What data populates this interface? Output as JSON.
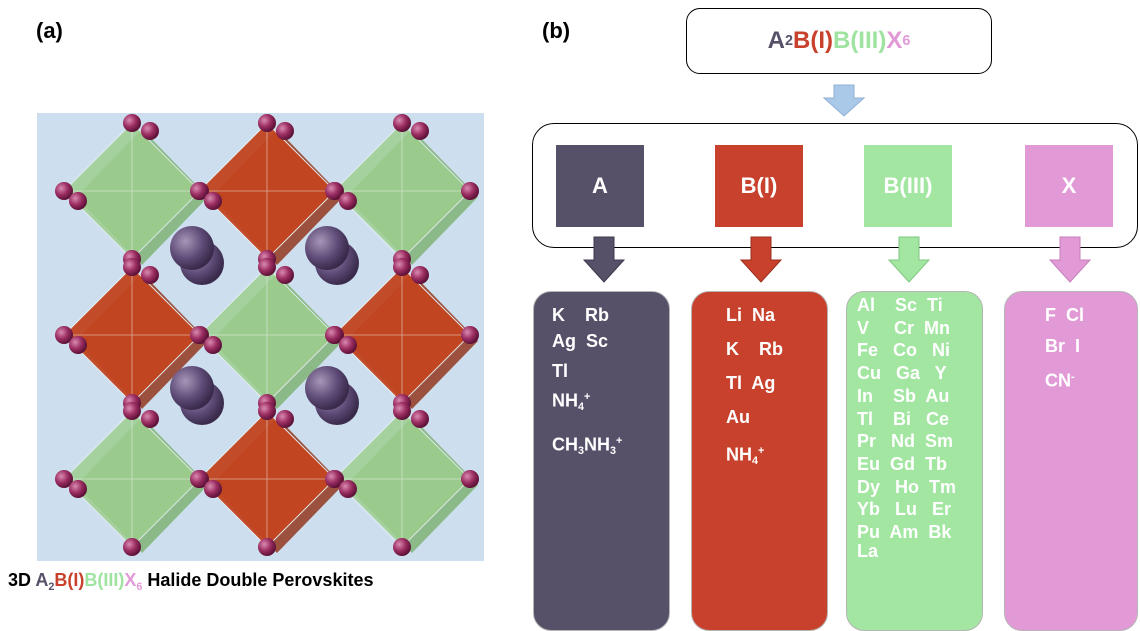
{
  "panel_a": {
    "label": "(a)",
    "caption": {
      "prefix": "3D ",
      "a": "A",
      "a_sub": "2",
      "b1": "B(I)",
      "b3": "B(III)",
      "x": "X",
      "x_sub": "6",
      "suffix": " Halide Double Perovskites"
    }
  },
  "panel_b": {
    "label": "(b)",
    "formula": {
      "a": "A",
      "a_sub": "2",
      "b1": "B(I)",
      "b3": "B(III)",
      "x": "X",
      "x_sub": "6"
    },
    "categories": [
      {
        "label": "A",
        "color": "#575069"
      },
      {
        "label": "B(I)",
        "color": "#c8412c"
      },
      {
        "label": "B(III)",
        "color": "#a2e6a1"
      },
      {
        "label": "X",
        "color": "#e19ad6"
      }
    ],
    "a_elements": {
      "line1": "K    Rb",
      "line2": "Ag  Sc",
      "line3": "Tl",
      "nh_main": "NH",
      "nh_sub": "4",
      "nh_sup": "+",
      "ch_a": "CH",
      "ch_a_sub": "3",
      "ch_b": "NH",
      "ch_b_sub": "3",
      "ch_sup": "+"
    },
    "b1_elements": {
      "line1": "Li  Na",
      "line2": "K    Rb",
      "line3": "Tl  Ag",
      "line4": "Au",
      "nh_main": "NH",
      "nh_sub": "4",
      "nh_sup": "+"
    },
    "b3_elements": [
      "Al    Sc  Ti",
      "V     Cr  Mn",
      "Fe   Co   Ni",
      "Cu   Ga   Y",
      "In    Sb  Au",
      "Tl    Bi   Ce",
      "Pr   Nd  Sm",
      "Eu  Gd  Tb",
      "Dy   Ho  Tm",
      "Yb   Lu   Er",
      "Pu  Am  Bk",
      "La"
    ],
    "x_elements": {
      "line1": "F  Cl",
      "line2": "Br  I",
      "cn_main": "CN",
      "cn_sup": "-"
    },
    "arrow_colors": {
      "top": "#aac8e8",
      "a": "#575069",
      "b1": "#c8412c",
      "b3": "#a2e6a1",
      "x": "#e19ad6"
    }
  }
}
